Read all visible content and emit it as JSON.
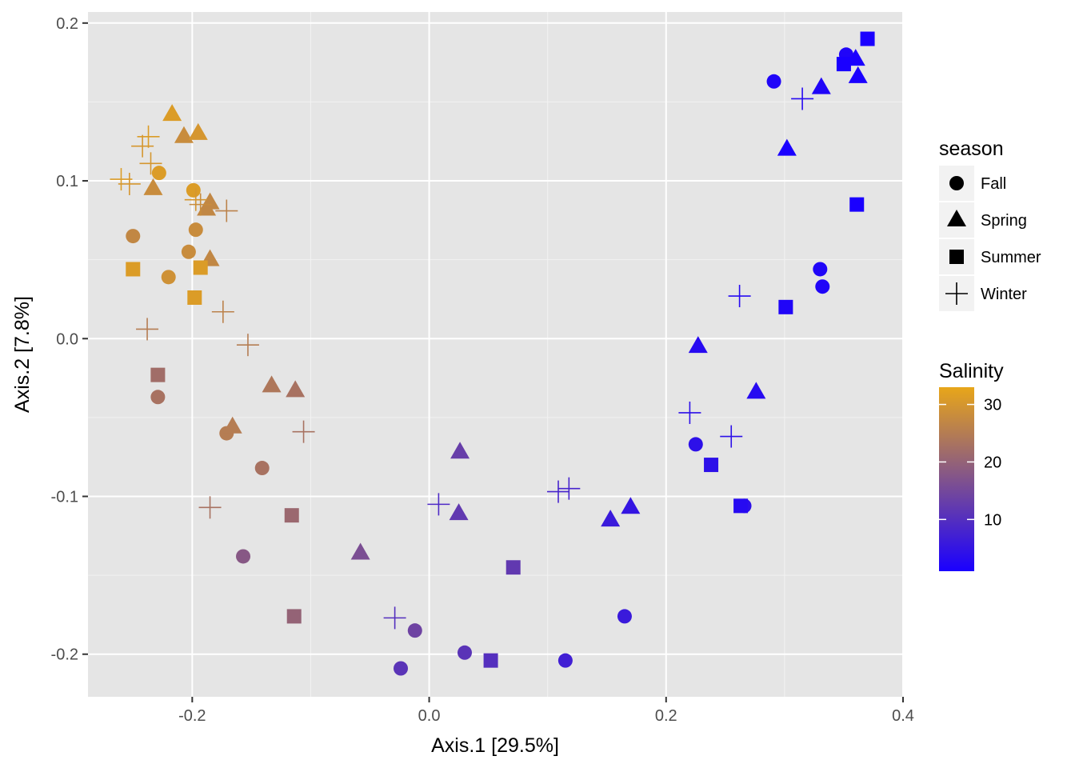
{
  "chart_data": {
    "type": "scatter",
    "xlabel": "Axis.1   [29.5%]",
    "ylabel": "Axis.2   [7.8%]",
    "xlim": [
      -0.288,
      0.4
    ],
    "ylim": [
      -0.227,
      0.207
    ],
    "x_ticks": [
      -0.2,
      0.0,
      0.2,
      0.4
    ],
    "x_tick_labels": [
      "-0.2",
      "0.0",
      "0.2",
      "0.4"
    ],
    "y_ticks": [
      -0.2,
      -0.1,
      0.0,
      0.1,
      0.2
    ],
    "y_tick_labels": [
      "-0.2",
      "-0.1",
      "0.0",
      "0.1",
      "0.2"
    ],
    "background": "#e5e5e5",
    "grid": true,
    "shape_legend": {
      "title": "season",
      "items": [
        {
          "label": "Fall",
          "shape": "circle"
        },
        {
          "label": "Spring",
          "shape": "triangle"
        },
        {
          "label": "Summer",
          "shape": "square"
        },
        {
          "label": "Winter",
          "shape": "plus"
        }
      ]
    },
    "color_legend": {
      "title": "Salinity",
      "min": 1,
      "max": 33,
      "ticks": [
        10,
        20,
        30
      ],
      "tick_labels": [
        "10",
        "20",
        "30"
      ],
      "low_color": "#1a00ff",
      "high_color": "#e8a619"
    },
    "points": [
      {
        "season": "Fall",
        "x": -0.228,
        "y": 0.105,
        "salinity": 31
      },
      {
        "season": "Fall",
        "x": -0.199,
        "y": 0.094,
        "salinity": 31
      },
      {
        "season": "Fall",
        "x": -0.25,
        "y": 0.065,
        "salinity": 27
      },
      {
        "season": "Fall",
        "x": -0.197,
        "y": 0.069,
        "salinity": 28
      },
      {
        "season": "Fall",
        "x": -0.203,
        "y": 0.055,
        "salinity": 28
      },
      {
        "season": "Fall",
        "x": -0.22,
        "y": 0.039,
        "salinity": 29
      },
      {
        "season": "Fall",
        "x": -0.229,
        "y": -0.037,
        "salinity": 23
      },
      {
        "season": "Fall",
        "x": -0.171,
        "y": -0.06,
        "salinity": 25
      },
      {
        "season": "Fall",
        "x": -0.141,
        "y": -0.082,
        "salinity": 23
      },
      {
        "season": "Fall",
        "x": -0.157,
        "y": -0.138,
        "salinity": 18
      },
      {
        "season": "Fall",
        "x": -0.024,
        "y": -0.209,
        "salinity": 11
      },
      {
        "season": "Fall",
        "x": -0.012,
        "y": -0.185,
        "salinity": 14
      },
      {
        "season": "Fall",
        "x": 0.03,
        "y": -0.199,
        "salinity": 11
      },
      {
        "season": "Fall",
        "x": 0.115,
        "y": -0.204,
        "salinity": 7
      },
      {
        "season": "Fall",
        "x": 0.165,
        "y": -0.176,
        "salinity": 6
      },
      {
        "season": "Fall",
        "x": 0.225,
        "y": -0.067,
        "salinity": 4
      },
      {
        "season": "Fall",
        "x": 0.266,
        "y": -0.106,
        "salinity": 4
      },
      {
        "season": "Fall",
        "x": 0.291,
        "y": 0.163,
        "salinity": 2
      },
      {
        "season": "Fall",
        "x": 0.33,
        "y": 0.044,
        "salinity": 2
      },
      {
        "season": "Fall",
        "x": 0.332,
        "y": 0.033,
        "salinity": 2
      },
      {
        "season": "Fall",
        "x": 0.352,
        "y": 0.18,
        "salinity": 2
      },
      {
        "season": "Fall",
        "x": 0.353,
        "y": 0.177,
        "salinity": 2
      },
      {
        "season": "Spring",
        "x": -0.217,
        "y": 0.142,
        "salinity": 31
      },
      {
        "season": "Spring",
        "x": -0.207,
        "y": 0.128,
        "salinity": 28
      },
      {
        "season": "Spring",
        "x": -0.195,
        "y": 0.13,
        "salinity": 30
      },
      {
        "season": "Spring",
        "x": -0.233,
        "y": 0.095,
        "salinity": 28
      },
      {
        "season": "Spring",
        "x": -0.185,
        "y": 0.086,
        "salinity": 27
      },
      {
        "season": "Spring",
        "x": -0.188,
        "y": 0.082,
        "salinity": 27
      },
      {
        "season": "Spring",
        "x": -0.185,
        "y": 0.05,
        "salinity": 27
      },
      {
        "season": "Spring",
        "x": -0.166,
        "y": -0.056,
        "salinity": 25
      },
      {
        "season": "Spring",
        "x": -0.133,
        "y": -0.03,
        "salinity": 24
      },
      {
        "season": "Spring",
        "x": -0.113,
        "y": -0.033,
        "salinity": 23
      },
      {
        "season": "Spring",
        "x": -0.058,
        "y": -0.136,
        "salinity": 16
      },
      {
        "season": "Spring",
        "x": 0.026,
        "y": -0.072,
        "salinity": 13
      },
      {
        "season": "Spring",
        "x": 0.025,
        "y": -0.111,
        "salinity": 12
      },
      {
        "season": "Spring",
        "x": 0.153,
        "y": -0.115,
        "salinity": 6
      },
      {
        "season": "Spring",
        "x": 0.17,
        "y": -0.107,
        "salinity": 5
      },
      {
        "season": "Spring",
        "x": 0.227,
        "y": -0.005,
        "salinity": 3
      },
      {
        "season": "Spring",
        "x": 0.276,
        "y": -0.034,
        "salinity": 3
      },
      {
        "season": "Spring",
        "x": 0.302,
        "y": 0.12,
        "salinity": 1
      },
      {
        "season": "Spring",
        "x": 0.331,
        "y": 0.159,
        "salinity": 2
      },
      {
        "season": "Spring",
        "x": 0.36,
        "y": 0.177,
        "salinity": 1
      },
      {
        "season": "Spring",
        "x": 0.362,
        "y": 0.166,
        "salinity": 1
      },
      {
        "season": "Summer",
        "x": -0.25,
        "y": 0.044,
        "salinity": 31
      },
      {
        "season": "Summer",
        "x": -0.193,
        "y": 0.045,
        "salinity": 31
      },
      {
        "season": "Summer",
        "x": -0.198,
        "y": 0.026,
        "salinity": 31
      },
      {
        "season": "Summer",
        "x": -0.229,
        "y": -0.023,
        "salinity": 22
      },
      {
        "season": "Summer",
        "x": -0.116,
        "y": -0.112,
        "salinity": 21
      },
      {
        "season": "Summer",
        "x": -0.114,
        "y": -0.176,
        "salinity": 20
      },
      {
        "season": "Summer",
        "x": 0.071,
        "y": -0.145,
        "salinity": 12
      },
      {
        "season": "Summer",
        "x": 0.052,
        "y": -0.204,
        "salinity": 10
      },
      {
        "season": "Summer",
        "x": 0.238,
        "y": -0.08,
        "salinity": 4
      },
      {
        "season": "Summer",
        "x": 0.263,
        "y": -0.106,
        "salinity": 3
      },
      {
        "season": "Summer",
        "x": 0.301,
        "y": 0.02,
        "salinity": 2
      },
      {
        "season": "Summer",
        "x": 0.35,
        "y": 0.174,
        "salinity": 1
      },
      {
        "season": "Summer",
        "x": 0.361,
        "y": 0.085,
        "salinity": 1
      },
      {
        "season": "Summer",
        "x": 0.37,
        "y": 0.19,
        "salinity": 1
      },
      {
        "season": "Winter",
        "x": -0.26,
        "y": 0.101,
        "salinity": 31
      },
      {
        "season": "Winter",
        "x": -0.253,
        "y": 0.098,
        "salinity": 30
      },
      {
        "season": "Winter",
        "x": -0.237,
        "y": 0.128,
        "salinity": 31
      },
      {
        "season": "Winter",
        "x": -0.242,
        "y": 0.122,
        "salinity": 30
      },
      {
        "season": "Winter",
        "x": -0.235,
        "y": 0.111,
        "salinity": 30
      },
      {
        "season": "Winter",
        "x": -0.197,
        "y": 0.088,
        "salinity": 30
      },
      {
        "season": "Winter",
        "x": -0.193,
        "y": 0.085,
        "salinity": 28
      },
      {
        "season": "Winter",
        "x": -0.171,
        "y": 0.081,
        "salinity": 26
      },
      {
        "season": "Winter",
        "x": -0.238,
        "y": 0.006,
        "salinity": 25
      },
      {
        "season": "Winter",
        "x": -0.174,
        "y": 0.017,
        "salinity": 26
      },
      {
        "season": "Winter",
        "x": -0.153,
        "y": -0.004,
        "salinity": 25
      },
      {
        "season": "Winter",
        "x": -0.106,
        "y": -0.059,
        "salinity": 23
      },
      {
        "season": "Winter",
        "x": -0.185,
        "y": -0.107,
        "salinity": 23
      },
      {
        "season": "Winter",
        "x": -0.029,
        "y": -0.177,
        "salinity": 10
      },
      {
        "season": "Winter",
        "x": 0.008,
        "y": -0.105,
        "salinity": 9
      },
      {
        "season": "Winter",
        "x": 0.109,
        "y": -0.097,
        "salinity": 8
      },
      {
        "season": "Winter",
        "x": 0.118,
        "y": -0.095,
        "salinity": 8
      },
      {
        "season": "Winter",
        "x": 0.22,
        "y": -0.047,
        "salinity": 4
      },
      {
        "season": "Winter",
        "x": 0.255,
        "y": -0.062,
        "salinity": 4
      },
      {
        "season": "Winter",
        "x": 0.262,
        "y": 0.027,
        "salinity": 3
      },
      {
        "season": "Winter",
        "x": 0.315,
        "y": 0.152,
        "salinity": 3
      }
    ]
  }
}
